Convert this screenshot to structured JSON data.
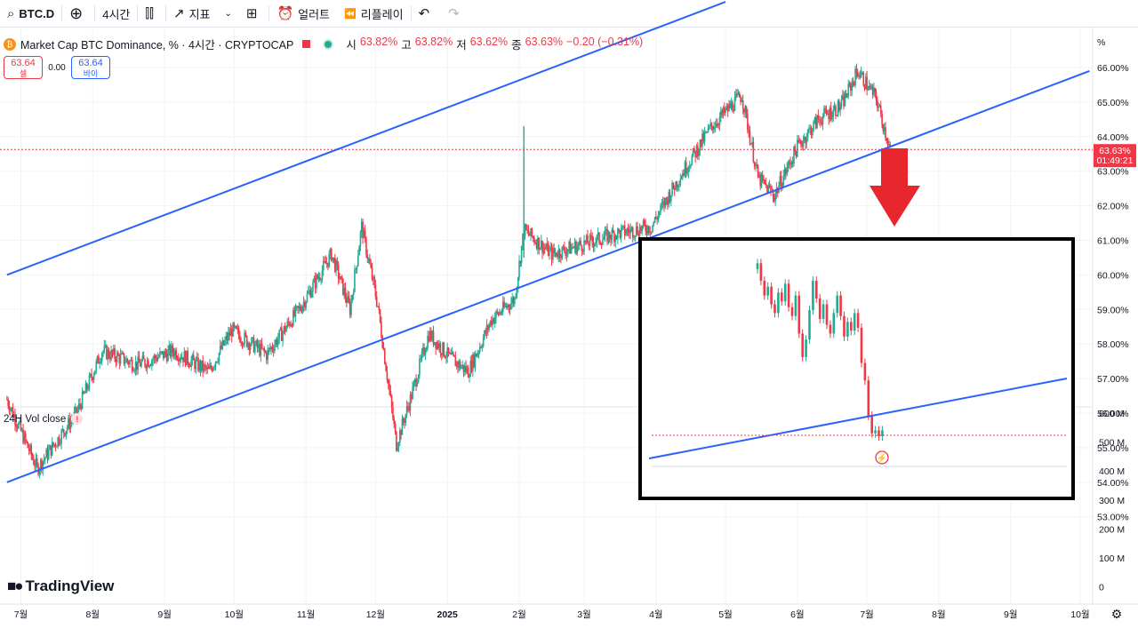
{
  "toolbar": {
    "symbol": "BTC.D",
    "interval": "4시간",
    "indicators_label": "지표",
    "alert_label": "얼러트",
    "replay_label": "리플레이"
  },
  "legend": {
    "title": "Market Cap BTC Dominance, % · 4시간 · CRYPTOCAP",
    "open_label": "시",
    "open": "63.82%",
    "high_label": "고",
    "high": "63.82%",
    "low_label": "저",
    "low": "63.62%",
    "close_label": "종",
    "close": "63.63%",
    "change": "−0.20 (−0.31%)"
  },
  "trade": {
    "sell_price": "63.64",
    "sell_label": "셀",
    "spread": "0.00",
    "buy_price": "63.64",
    "buy_label": "바이"
  },
  "volume_pane": {
    "label": "24H Vol close"
  },
  "brand": {
    "name": "TradingView"
  },
  "colors": {
    "up": "#22ab94",
    "down": "#f23645",
    "channel": "#2962ff",
    "arrow": "#e8262e"
  },
  "chart_data": [
    {
      "type": "candlestick",
      "title": "Market Cap BTC Dominance, % · 4시간 · CRYPTOCAP",
      "unit_label": "%",
      "y_ticks": [
        "66.00%",
        "65.00%",
        "64.00%",
        "63.00%",
        "62.00%",
        "61.00%",
        "60.00%",
        "59.00%",
        "58.00%",
        "57.00%",
        "56.00%",
        "55.00%",
        "54.00%",
        "53.00%"
      ],
      "ylim": [
        52.9,
        66.5
      ],
      "x_ticks": [
        "7월",
        "8월",
        "9월",
        "10월",
        "11월",
        "12월",
        "2025",
        "2월",
        "3월",
        "4월",
        "5월",
        "6월",
        "7월",
        "8월",
        "9월",
        "10월"
      ],
      "last_price": "63.63%",
      "countdown": "01:49:21",
      "close_path": [
        {
          "x": "2024-06-25",
          "y": 56.4
        },
        {
          "x": "2024-07-08",
          "y": 54.4
        },
        {
          "x": "2024-07-25",
          "y": 56.0
        },
        {
          "x": "2024-08-05",
          "y": 57.8
        },
        {
          "x": "2024-08-20",
          "y": 57.4
        },
        {
          "x": "2024-09-05",
          "y": 57.8
        },
        {
          "x": "2024-09-20",
          "y": 57.2
        },
        {
          "x": "2024-09-30",
          "y": 58.4
        },
        {
          "x": "2024-10-15",
          "y": 57.7
        },
        {
          "x": "2024-10-30",
          "y": 59.1
        },
        {
          "x": "2024-11-12",
          "y": 60.6
        },
        {
          "x": "2024-11-20",
          "y": 59.0
        },
        {
          "x": "2024-11-25",
          "y": 61.4
        },
        {
          "x": "2024-12-02",
          "y": 59.1
        },
        {
          "x": "2024-12-10",
          "y": 55.1
        },
        {
          "x": "2024-12-16",
          "y": 56.4
        },
        {
          "x": "2024-12-24",
          "y": 58.3
        },
        {
          "x": "2025-01-02",
          "y": 57.6
        },
        {
          "x": "2025-01-10",
          "y": 57.2
        },
        {
          "x": "2025-01-20",
          "y": 58.7
        },
        {
          "x": "2025-01-30",
          "y": 59.3
        },
        {
          "x": "2025-02-03",
          "y": 61.3
        },
        {
          "x": "2025-02-15",
          "y": 60.6
        },
        {
          "x": "2025-03-01",
          "y": 60.9
        },
        {
          "x": "2025-03-15",
          "y": 61.2
        },
        {
          "x": "2025-03-30",
          "y": 61.4
        },
        {
          "x": "2025-04-10",
          "y": 62.7
        },
        {
          "x": "2025-04-25",
          "y": 64.3
        },
        {
          "x": "2025-05-08",
          "y": 65.2
        },
        {
          "x": "2025-05-15",
          "y": 62.8
        },
        {
          "x": "2025-05-22",
          "y": 62.3
        },
        {
          "x": "2025-06-01",
          "y": 63.7
        },
        {
          "x": "2025-06-10",
          "y": 64.5
        },
        {
          "x": "2025-06-20",
          "y": 64.9
        },
        {
          "x": "2025-06-27",
          "y": 65.9
        },
        {
          "x": "2025-07-05",
          "y": 65.1
        },
        {
          "x": "2025-07-11",
          "y": 63.63
        }
      ],
      "spike": {
        "x": "2025-02-03",
        "high": 64.3
      },
      "channel_lines": [
        {
          "from": {
            "x": "2024-06-25",
            "y": 60.0
          },
          "to": {
            "x": "2025-05-01",
            "y": 67.9
          }
        },
        {
          "from": {
            "x": "2024-06-25",
            "y": 54.0
          },
          "to": {
            "x": "2025-10-05",
            "y": 65.9
          }
        }
      ],
      "annotation": "down arrow below channel touch"
    },
    {
      "type": "area",
      "title": "24H Vol close",
      "y_ticks": [
        "600 M",
        "500 M",
        "400 M",
        "300 M",
        "200 M",
        "100 M",
        "0"
      ]
    },
    {
      "type": "candlestick",
      "title": "inset zoom",
      "note": "zoomed view of latest candles dropping to channel support"
    }
  ]
}
